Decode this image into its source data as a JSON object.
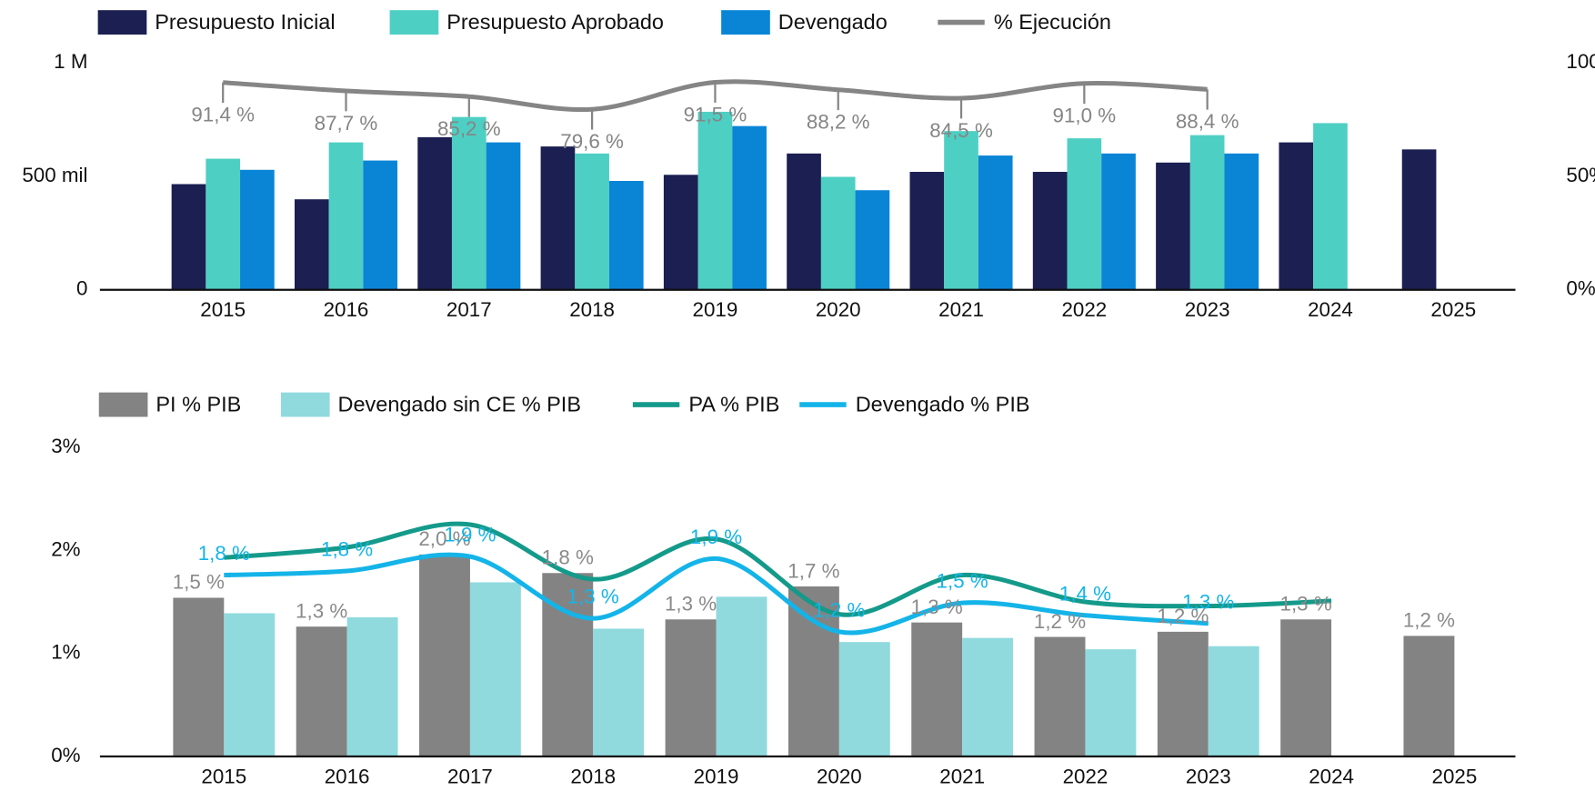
{
  "chart_data": [
    {
      "type": "bar",
      "categories": [
        "2015",
        "2016",
        "2017",
        "2018",
        "2019",
        "2020",
        "2021",
        "2022",
        "2023",
        "2024",
        "2025"
      ],
      "ylim": [
        0,
        1000000
      ],
      "yticks": [
        0,
        {
          "value": 500000,
          "label": "500 mil"
        },
        {
          "value": 1000000,
          "label": "1 M"
        }
      ],
      "y2lim": [
        0,
        100
      ],
      "y2ticks": [
        {
          "value": 0,
          "label": "0%"
        },
        {
          "value": 50,
          "label": "50%"
        },
        {
          "value": 100,
          "label": "100%"
        }
      ],
      "series": [
        {
          "name": "Presupuesto Inicial",
          "type": "bar",
          "color": "#1b1f52",
          "values": [
            466000,
            399000,
            673000,
            632000,
            507000,
            601000,
            520000,
            520000,
            561000,
            650000,
            619000
          ]
        },
        {
          "name": "Presupuesto Aprobado",
          "type": "bar",
          "color": "#4ecfc3",
          "values": [
            578000,
            650000,
            762000,
            601000,
            785000,
            498000,
            700000,
            668000,
            682000,
            735000,
            null
          ]
        },
        {
          "name": "Devengado",
          "type": "bar",
          "color": "#0a85d6",
          "values": [
            529000,
            570000,
            650000,
            480000,
            722000,
            439000,
            592000,
            601000,
            601000,
            null,
            null
          ]
        },
        {
          "name": "% Ejecución",
          "type": "line",
          "axis": "y2",
          "color": "#858585",
          "values": [
            91.4,
            87.7,
            85.2,
            79.6,
            91.5,
            88.2,
            84.5,
            91.0,
            88.4,
            null,
            null
          ],
          "value_labels": [
            "91,4 %",
            "87,7 %",
            "85,2 %",
            "79,6 %",
            "91,5 %",
            "88,2 %",
            "84,5 %",
            "91,0 %",
            "88,4 %",
            null,
            null
          ]
        }
      ]
    },
    {
      "type": "bar",
      "categories": [
        "2015",
        "2016",
        "2017",
        "2018",
        "2019",
        "2020",
        "2021",
        "2022",
        "2023",
        "2024",
        "2025"
      ],
      "ylim": [
        0,
        3
      ],
      "yticks": [
        {
          "value": 0,
          "label": "0%"
        },
        {
          "value": 1,
          "label": "1%"
        },
        {
          "value": 2,
          "label": "2%"
        },
        {
          "value": 3,
          "label": "3%"
        }
      ],
      "series": [
        {
          "name": "PI % PIB",
          "type": "bar",
          "color": "#838383",
          "values": [
            1.54,
            1.26,
            1.96,
            1.78,
            1.33,
            1.65,
            1.3,
            1.16,
            1.21,
            1.33,
            1.17
          ],
          "value_labels": [
            "1,5 %",
            "1,3 %",
            "2,0 %",
            "1,8 %",
            "1,3 %",
            "1,7 %",
            "1,3 %",
            "1,2 %",
            "1,2 %",
            "1,3 %",
            "1,2 %"
          ]
        },
        {
          "name": "Devengado sin CE % PIB",
          "type": "bar",
          "color": "#90dade",
          "values": [
            1.39,
            1.35,
            1.69,
            1.24,
            1.55,
            1.11,
            1.15,
            1.04,
            1.07,
            null,
            null
          ]
        },
        {
          "name": "PA % PIB",
          "type": "line",
          "color": "#149a8a",
          "values": [
            1.93,
            2.03,
            2.25,
            1.72,
            2.11,
            1.38,
            1.76,
            1.5,
            1.46,
            1.51,
            null
          ]
        },
        {
          "name": "Devengado % PIB",
          "type": "line",
          "color": "#14b4e8",
          "values": [
            1.76,
            1.8,
            1.94,
            1.34,
            1.92,
            1.21,
            1.49,
            1.37,
            1.29,
            null,
            null
          ],
          "value_labels": [
            "1,8 %",
            "1,8 %",
            "1,9 %",
            "1,3 %",
            "1,9 %",
            "1,2 %",
            "1,5 %",
            "1,4 %",
            "1,3 %",
            null,
            null
          ]
        }
      ]
    }
  ]
}
